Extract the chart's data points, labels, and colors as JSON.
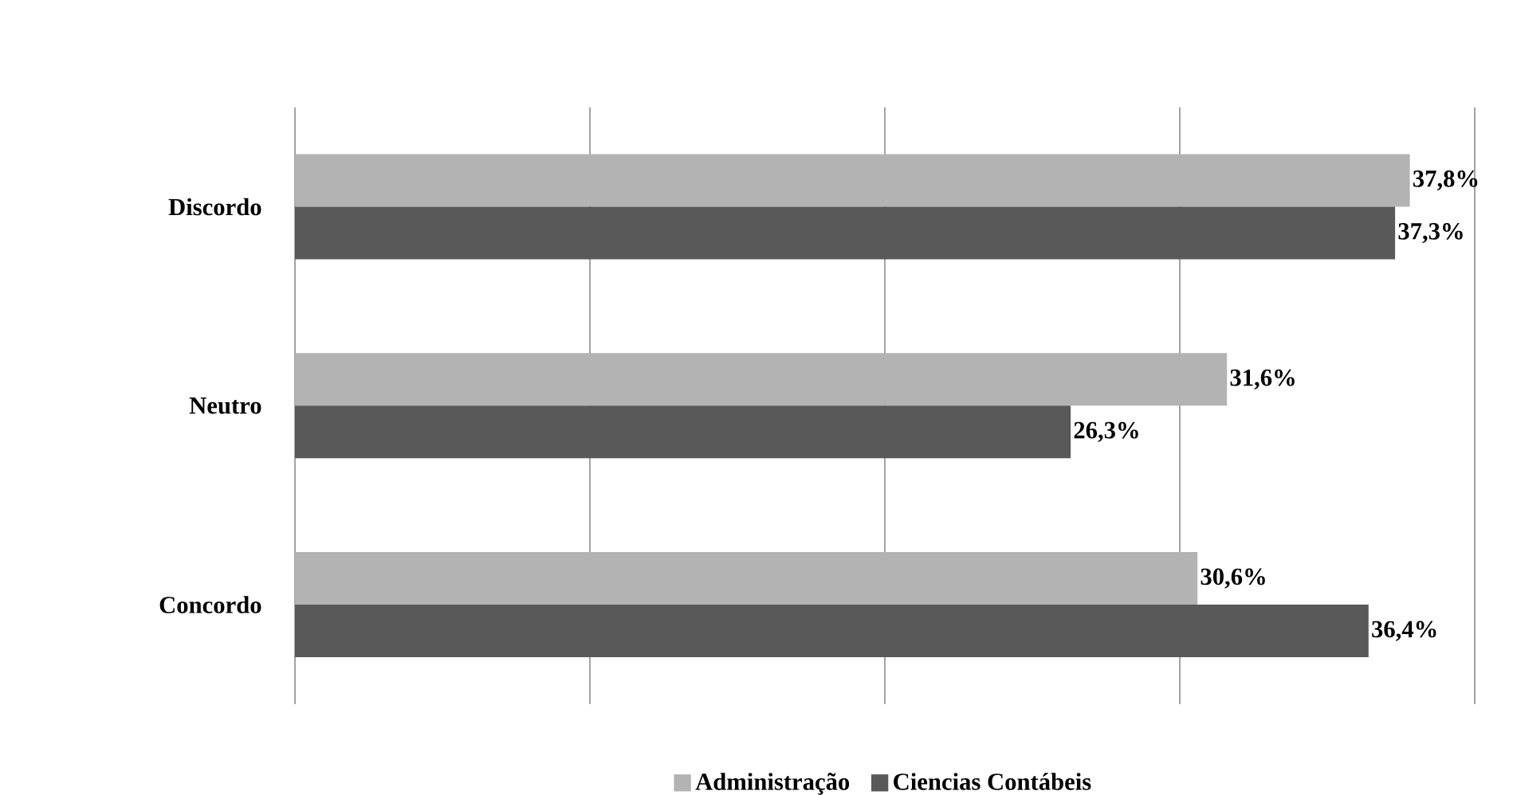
{
  "chart_data": {
    "type": "bar",
    "orientation": "horizontal",
    "categories": [
      "Discordo",
      "Neutro",
      "Concordo"
    ],
    "series": [
      {
        "name": "Administração",
        "color": "#b3b3b3",
        "values": [
          37.8,
          31.6,
          30.6
        ],
        "value_labels": [
          "37,8%",
          "31,6%",
          "30,6%"
        ]
      },
      {
        "name": "Ciencias Contábeis",
        "color": "#595959",
        "values": [
          37.3,
          26.3,
          36.4
        ],
        "value_labels": [
          "37,3%",
          "26,3%",
          "36,4%"
        ]
      }
    ],
    "xlim": [
      0,
      40
    ],
    "xticks": [
      {
        "value": 0,
        "label": null
      },
      {
        "value": 10,
        "label": null
      },
      {
        "value": 20,
        "label": null
      },
      {
        "value": 30,
        "label": null
      },
      {
        "value": 40,
        "label": null
      }
    ],
    "grid": "x",
    "legend": "bottom",
    "tick_labels": "y"
  }
}
